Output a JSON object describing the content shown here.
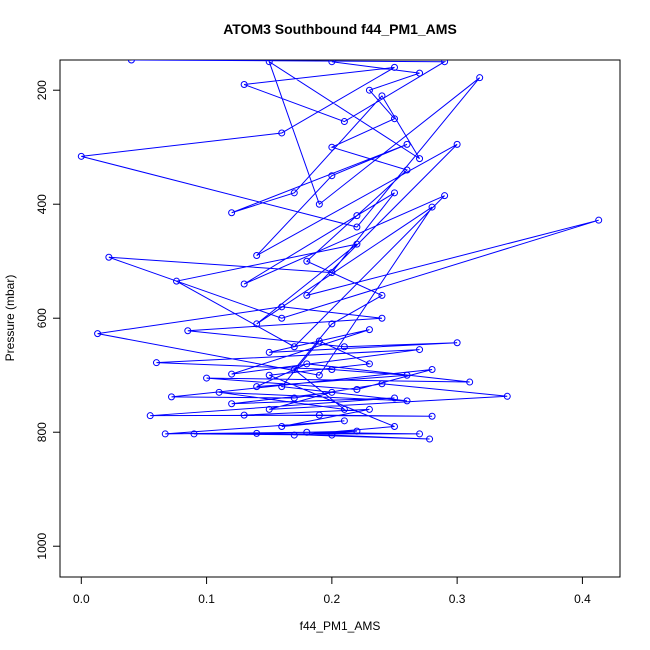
{
  "chart_data": {
    "type": "line",
    "title": "ATOM3 Southbound f44_PM1_AMS",
    "xlabel": "f44_PM1_AMS",
    "ylabel": "Pressure (mbar)",
    "x": [
      0.04,
      0.29,
      0.21,
      0.13,
      0.25,
      0.16,
      0.0,
      0.22,
      0.318,
      0.19,
      0.15,
      0.27,
      0.24,
      0.17,
      0.12,
      0.26,
      0.2,
      0.14,
      0.3,
      0.18,
      0.413,
      0.16,
      0.022,
      0.2,
      0.25,
      0.13,
      0.29,
      0.17,
      0.076,
      0.22,
      0.14,
      0.28,
      0.19,
      0.013,
      0.16,
      0.24,
      0.085,
      0.21,
      0.3,
      0.15,
      0.23,
      0.12,
      0.27,
      0.06,
      0.2,
      0.26,
      0.14,
      0.18,
      0.31,
      0.1,
      0.22,
      0.28,
      0.072,
      0.17,
      0.24,
      0.34,
      0.15,
      0.2,
      0.12,
      0.25,
      0.055,
      0.19,
      0.28,
      0.13,
      0.23,
      0.16,
      0.21,
      0.067,
      0.18,
      0.27,
      0.09,
      0.2,
      0.278,
      0.14,
      0.22,
      0.17,
      0.25,
      0.15,
      0.23,
      0.19,
      0.16,
      0.26,
      0.11,
      0.21,
      0.17,
      0.2,
      0.24,
      0.18,
      0.22,
      0.26,
      0.2,
      0.25,
      0.23,
      0.27,
      0.2
    ],
    "series": [
      {
        "name": "Pressure (mbar)",
        "color": "#0000ff",
        "values": [
          147,
          150,
          255,
          190,
          160,
          275,
          316,
          440,
          178,
          400,
          150,
          320,
          210,
          380,
          415,
          295,
          350,
          490,
          295,
          560,
          428,
          600,
          493,
          520,
          380,
          540,
          385,
          650,
          535,
          470,
          610,
          405,
          700,
          627,
          580,
          600,
          622,
          650,
          643,
          660,
          620,
          698,
          655,
          678,
          690,
          700,
          720,
          680,
          712,
          705,
          725,
          690,
          738,
          740,
          715,
          737,
          760,
          730,
          750,
          740,
          771,
          770,
          772,
          770,
          760,
          790,
          780,
          803,
          800,
          803,
          803,
          805,
          812,
          802,
          798,
          805,
          790,
          700,
          680,
          640,
          720,
          745,
          730,
          760,
          690,
          610,
          560,
          500,
          420,
          340,
          300,
          250,
          200,
          170,
          150
        ]
      }
    ],
    "xlim": [
      -0.017,
      0.43
    ],
    "ylim": [
      1054,
      147
    ],
    "xticks": [
      {
        "value": 0,
        "label": "0.0"
      },
      {
        "value": 0.1,
        "label": "0.1"
      },
      {
        "value": 0.2,
        "label": "0.2"
      },
      {
        "value": 0.3,
        "label": "0.3"
      },
      {
        "value": 0.4,
        "label": "0.4"
      }
    ],
    "yticks": [
      200,
      400,
      600,
      800,
      1000
    ]
  }
}
